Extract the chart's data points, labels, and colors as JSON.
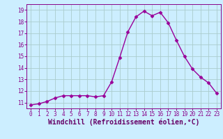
{
  "x": [
    0,
    1,
    2,
    3,
    4,
    5,
    6,
    7,
    8,
    9,
    10,
    11,
    12,
    13,
    14,
    15,
    16,
    17,
    18,
    19,
    20,
    21,
    22,
    23
  ],
  "y": [
    10.8,
    10.9,
    11.1,
    11.4,
    11.6,
    11.6,
    11.6,
    11.6,
    11.5,
    11.6,
    12.8,
    14.9,
    17.1,
    18.4,
    18.9,
    18.5,
    18.8,
    17.9,
    16.4,
    15.0,
    13.9,
    13.2,
    12.7,
    11.8
  ],
  "line_color": "#990099",
  "marker": "D",
  "marker_size": 2.5,
  "bg_color": "#cceeff",
  "grid_color": "#aacccc",
  "xlabel": "Windchill (Refroidissement éolien,°C)",
  "xlim": [
    -0.5,
    23.5
  ],
  "ylim": [
    10.5,
    19.5
  ],
  "yticks": [
    11,
    12,
    13,
    14,
    15,
    16,
    17,
    18,
    19
  ],
  "xticks": [
    0,
    1,
    2,
    3,
    4,
    5,
    6,
    7,
    8,
    9,
    10,
    11,
    12,
    13,
    14,
    15,
    16,
    17,
    18,
    19,
    20,
    21,
    22,
    23
  ],
  "tick_fontsize": 5.5,
  "xlabel_fontsize": 7.0,
  "tick_color": "#880088",
  "label_color": "#660066",
  "spine_color": "#880088",
  "linewidth": 1.0
}
